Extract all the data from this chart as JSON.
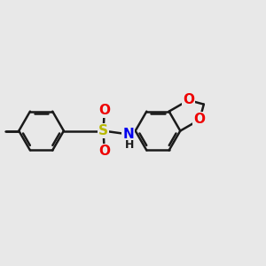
{
  "background_color": "#e8e8e8",
  "bond_color": "#1a1a1a",
  "bond_width": 1.8,
  "atom_colors": {
    "S": "#b8b800",
    "N": "#0000ee",
    "O": "#ee0000",
    "C": "#1a1a1a"
  },
  "font_size_atom": 10,
  "figsize": [
    3.0,
    3.0
  ],
  "dpi": 100,
  "scale": 1.0
}
